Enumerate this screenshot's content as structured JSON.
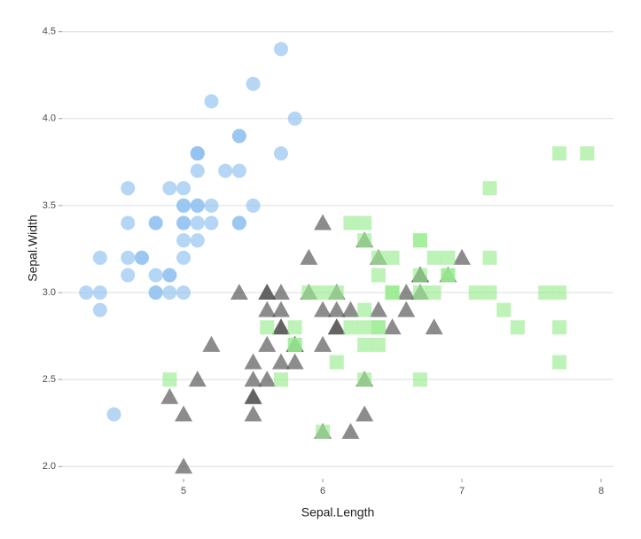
{
  "chart_data": {
    "type": "scatter",
    "x_label": "Sepal.Length",
    "y_label": "Sepal.Width",
    "xlim": [
      4.127,
      8.089
    ],
    "ylim": [
      1.93,
      4.58
    ],
    "xticks": [
      5,
      6,
      7,
      8
    ],
    "yticks": [
      {
        "value": 2,
        "label": "2.0"
      },
      2.5,
      {
        "value": 3,
        "label": "3.0"
      },
      3.5,
      {
        "value": 4,
        "label": "4.0"
      },
      4.5
    ],
    "grid": true,
    "opacity": 0.65,
    "series": [
      {
        "color": "#8ec0f0",
        "marker": "circle",
        "x": [
          5.1,
          4.9,
          4.7,
          4.6,
          5.0,
          5.4,
          4.6,
          5.0,
          4.4,
          4.9,
          5.4,
          4.8,
          4.8,
          4.3,
          5.8,
          5.7,
          5.4,
          5.1,
          5.7,
          5.1,
          5.4,
          5.1,
          4.6,
          5.1,
          4.8,
          5.0,
          5.0,
          5.2,
          5.2,
          4.7,
          4.8,
          5.4,
          5.2,
          5.5,
          4.9,
          5.0,
          5.5,
          4.9,
          4.4,
          5.1,
          5.0,
          4.5,
          4.4,
          5.0,
          5.1,
          4.8,
          5.1,
          4.6,
          5.3,
          5.0
        ],
        "values": [
          3.5,
          3.0,
          3.2,
          3.1,
          3.6,
          3.9,
          3.4,
          3.4,
          2.9,
          3.1,
          3.7,
          3.4,
          3.0,
          3.0,
          4.0,
          4.4,
          3.9,
          3.5,
          3.8,
          3.8,
          3.4,
          3.7,
          3.6,
          3.3,
          3.4,
          3.0,
          3.4,
          3.5,
          3.4,
          3.2,
          3.1,
          3.4,
          4.1,
          4.2,
          3.1,
          3.2,
          3.5,
          3.6,
          3.0,
          3.4,
          3.5,
          2.3,
          3.2,
          3.5,
          3.8,
          3.0,
          3.8,
          3.2,
          3.7,
          3.3
        ]
      },
      {
        "color": "#4f4f4f",
        "marker": "triangle",
        "x": [
          7.0,
          6.4,
          6.9,
          5.5,
          6.5,
          5.7,
          6.3,
          4.9,
          6.6,
          5.2,
          5.0,
          5.9,
          6.0,
          6.1,
          5.6,
          6.7,
          5.6,
          5.8,
          6.2,
          5.6,
          5.9,
          6.1,
          6.3,
          6.1,
          6.4,
          6.6,
          6.8,
          6.7,
          6.0,
          5.7,
          5.5,
          5.5,
          5.8,
          6.0,
          5.4,
          6.0,
          6.7,
          6.3,
          5.6,
          5.5,
          5.5,
          6.1,
          5.8,
          5.0,
          5.6,
          5.7,
          5.7,
          6.2,
          5.1,
          5.7
        ],
        "values": [
          3.2,
          3.2,
          3.1,
          2.3,
          2.8,
          2.8,
          3.3,
          2.4,
          2.9,
          2.7,
          2.0,
          3.0,
          2.2,
          2.9,
          2.9,
          3.1,
          3.0,
          2.7,
          2.2,
          2.5,
          3.2,
          2.8,
          2.5,
          2.8,
          2.9,
          3.0,
          2.8,
          3.0,
          2.9,
          2.6,
          2.4,
          2.4,
          2.7,
          2.7,
          3.0,
          3.4,
          3.1,
          2.3,
          3.0,
          2.5,
          2.6,
          3.0,
          2.6,
          2.3,
          2.7,
          3.0,
          2.9,
          2.9,
          2.5,
          2.8
        ]
      },
      {
        "color": "#9aed90",
        "marker": "square",
        "x": [
          6.3,
          5.8,
          7.1,
          6.3,
          6.5,
          7.6,
          4.9,
          7.3,
          6.7,
          7.2,
          6.5,
          6.4,
          6.8,
          5.7,
          5.8,
          6.4,
          6.5,
          7.7,
          7.7,
          6.0,
          6.9,
          5.6,
          7.7,
          6.3,
          6.7,
          7.2,
          6.2,
          6.1,
          6.4,
          7.2,
          7.4,
          7.9,
          6.4,
          6.3,
          6.1,
          7.7,
          6.3,
          6.4,
          6.0,
          6.9,
          6.7,
          6.9,
          5.8,
          6.8,
          6.7,
          6.7,
          6.3,
          6.5,
          6.2,
          5.9
        ],
        "values": [
          3.3,
          2.7,
          3.0,
          2.9,
          3.0,
          3.0,
          2.5,
          2.9,
          2.5,
          3.6,
          3.2,
          2.7,
          3.0,
          2.5,
          2.8,
          3.2,
          3.0,
          3.8,
          2.6,
          2.2,
          3.2,
          2.8,
          2.8,
          2.7,
          3.3,
          3.2,
          2.8,
          3.0,
          2.8,
          3.0,
          2.8,
          3.8,
          2.8,
          2.8,
          2.6,
          3.0,
          3.4,
          3.1,
          3.0,
          3.1,
          3.1,
          3.1,
          2.7,
          3.2,
          3.3,
          3.0,
          2.5,
          3.0,
          3.4,
          3.0
        ]
      }
    ]
  }
}
